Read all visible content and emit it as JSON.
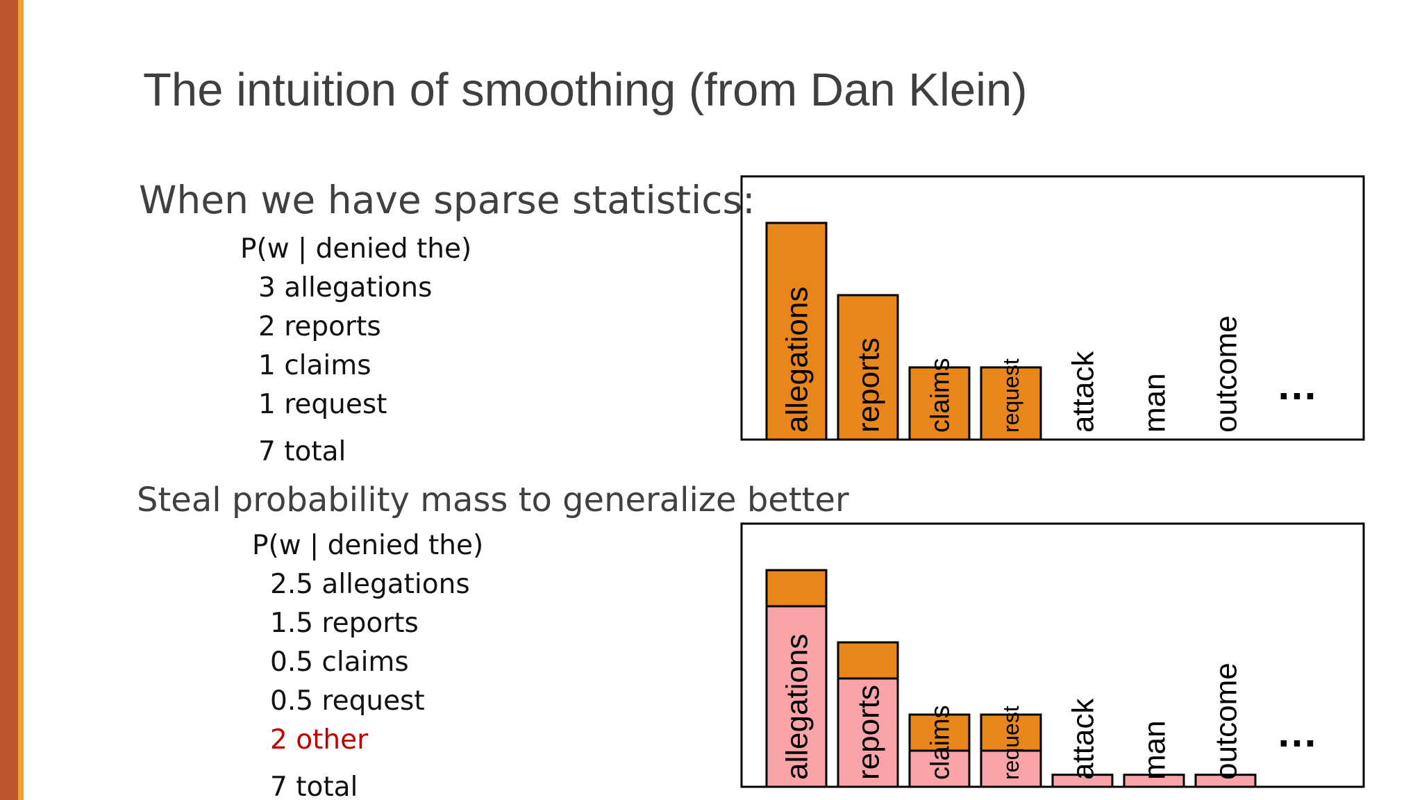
{
  "slide": {
    "title": "The intuition of smoothing (from Dan Klein)",
    "accent_colors": {
      "bar": "#c0562b",
      "stripe": "#f0a030"
    }
  },
  "section1": {
    "heading": "When we have sparse statistics:",
    "condition": "P(w | denied the)",
    "items": [
      "3 allegations",
      "2 reports",
      "1 claims",
      "1 request"
    ],
    "total": "7 total"
  },
  "section2": {
    "heading": "Steal probability mass to generalize better",
    "condition": "P(w | denied the)",
    "items": [
      "2.5 allegations",
      "1.5 reports",
      "0.5 claims",
      "0.5 request"
    ],
    "other": "2 other",
    "total": "7 total"
  },
  "chart_data": [
    {
      "type": "bar",
      "categories": [
        "allegations",
        "reports",
        "claims",
        "request",
        "attack",
        "man",
        "outcome"
      ],
      "values": [
        3,
        2,
        1,
        1,
        0,
        0,
        0
      ],
      "ellipsis": "…",
      "bar_color": "#e8861a",
      "ylim": [
        0,
        3.5
      ]
    },
    {
      "type": "bar",
      "stacked": true,
      "categories": [
        "allegations",
        "reports",
        "claims",
        "request",
        "attack",
        "man",
        "outcome"
      ],
      "series": [
        {
          "values": [
            2.5,
            1.5,
            0.5,
            0.5,
            0.16667,
            0.16667,
            0.16667
          ],
          "color": "#f8a4a8"
        },
        {
          "values": [
            0.5,
            0.5,
            0.5,
            0.5,
            0,
            0,
            0
          ],
          "color": "#e8861a"
        }
      ],
      "ellipsis": "…",
      "ylim": [
        0,
        3.5
      ]
    }
  ]
}
